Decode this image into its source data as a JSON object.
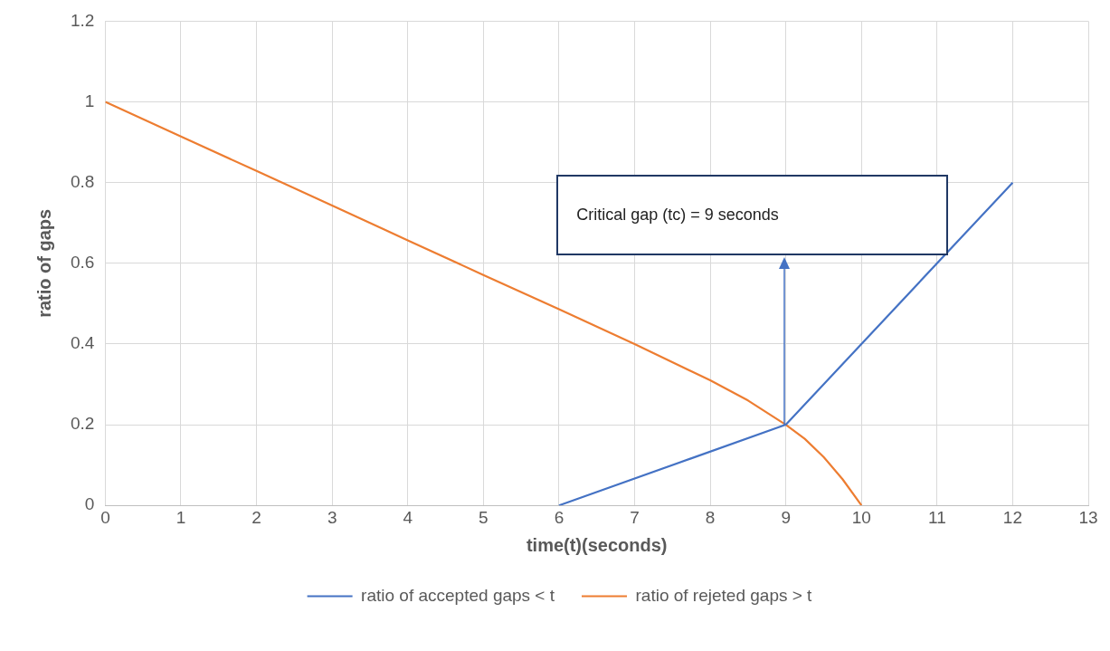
{
  "chart_data": {
    "type": "line",
    "xlabel": "time(t)(seconds)",
    "ylabel": "ratio of gaps",
    "xlim": [
      0,
      13
    ],
    "xticks": [
      0,
      1,
      2,
      3,
      4,
      5,
      6,
      7,
      8,
      9,
      10,
      11,
      12,
      13
    ],
    "ylim": [
      0,
      1.2
    ],
    "yticks": [
      0,
      0.2,
      0.4,
      0.6,
      0.8,
      1,
      1.2
    ],
    "grid": true,
    "legend": "bottom",
    "marker": "none",
    "line_style": "solid",
    "series": [
      {
        "name": "ratio of accepted gaps < t",
        "color": "#4472c4",
        "x": [
          6,
          9,
          12
        ],
        "values": [
          0,
          0.2,
          0.8
        ]
      },
      {
        "name": "ratio of rejeted gaps > t",
        "color": "#ed7d31",
        "x": [
          0,
          1,
          2,
          3,
          4,
          5,
          6,
          7,
          8,
          8.5,
          9,
          9.25,
          9.5,
          9.75,
          10
        ],
        "values": [
          1,
          0.914,
          0.829,
          0.743,
          0.657,
          0.571,
          0.486,
          0.4,
          0.31,
          0.26,
          0.2,
          0.165,
          0.12,
          0.065,
          0
        ]
      }
    ],
    "annotations": [
      "Critical gap (tc) = 9 seconds"
    ]
  }
}
